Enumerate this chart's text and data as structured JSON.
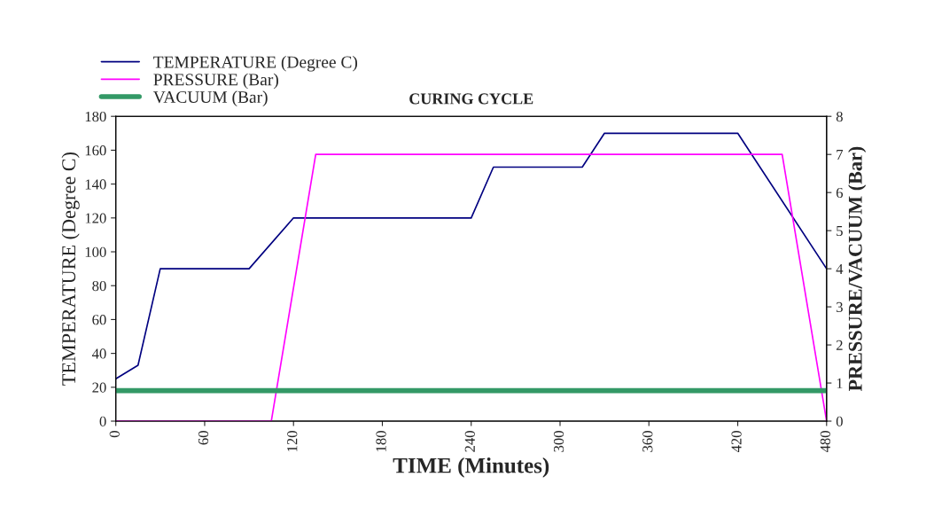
{
  "chart_data": {
    "type": "line",
    "title": "CURING CYCLE",
    "xlabel": "TIME (Minutes)",
    "ylabel": "TEMPERATURE (Degree C)",
    "y2label": "PRESSURE/VACUUM (Bar)",
    "series": [
      {
        "name": "TEMPERATURE (Degree C)",
        "color": "#000080",
        "x": [
          0,
          15,
          30,
          90,
          120,
          240,
          255,
          315,
          330,
          420,
          480
        ],
        "values": [
          25,
          33,
          90,
          90,
          120,
          120,
          150,
          150,
          170,
          170,
          90
        ]
      },
      {
        "name": "PRESSURE (Bar)",
        "color": "#ff00ff",
        "axis": "y2",
        "x": [
          0,
          105,
          135,
          450,
          480
        ],
        "values": [
          0,
          0,
          7,
          7,
          0
        ]
      },
      {
        "name": "VACUUM (Bar)",
        "color": "#339966",
        "axis": "y2",
        "x": [
          0,
          480
        ],
        "values": [
          0.8,
          0.8
        ]
      }
    ],
    "xlim": [
      0,
      480
    ],
    "xticks": [
      0,
      60,
      120,
      180,
      240,
      300,
      360,
      420,
      480
    ],
    "ylim": [
      0,
      180
    ],
    "yticks": [
      0,
      20,
      40,
      60,
      80,
      100,
      120,
      140,
      160,
      180
    ],
    "y2lim": [
      0,
      8
    ],
    "y2ticks": [
      0,
      1,
      2,
      3,
      4,
      5,
      6,
      7,
      8
    ],
    "grid": false,
    "legend": "top left",
    "marker": "none",
    "line_style": "solid"
  }
}
